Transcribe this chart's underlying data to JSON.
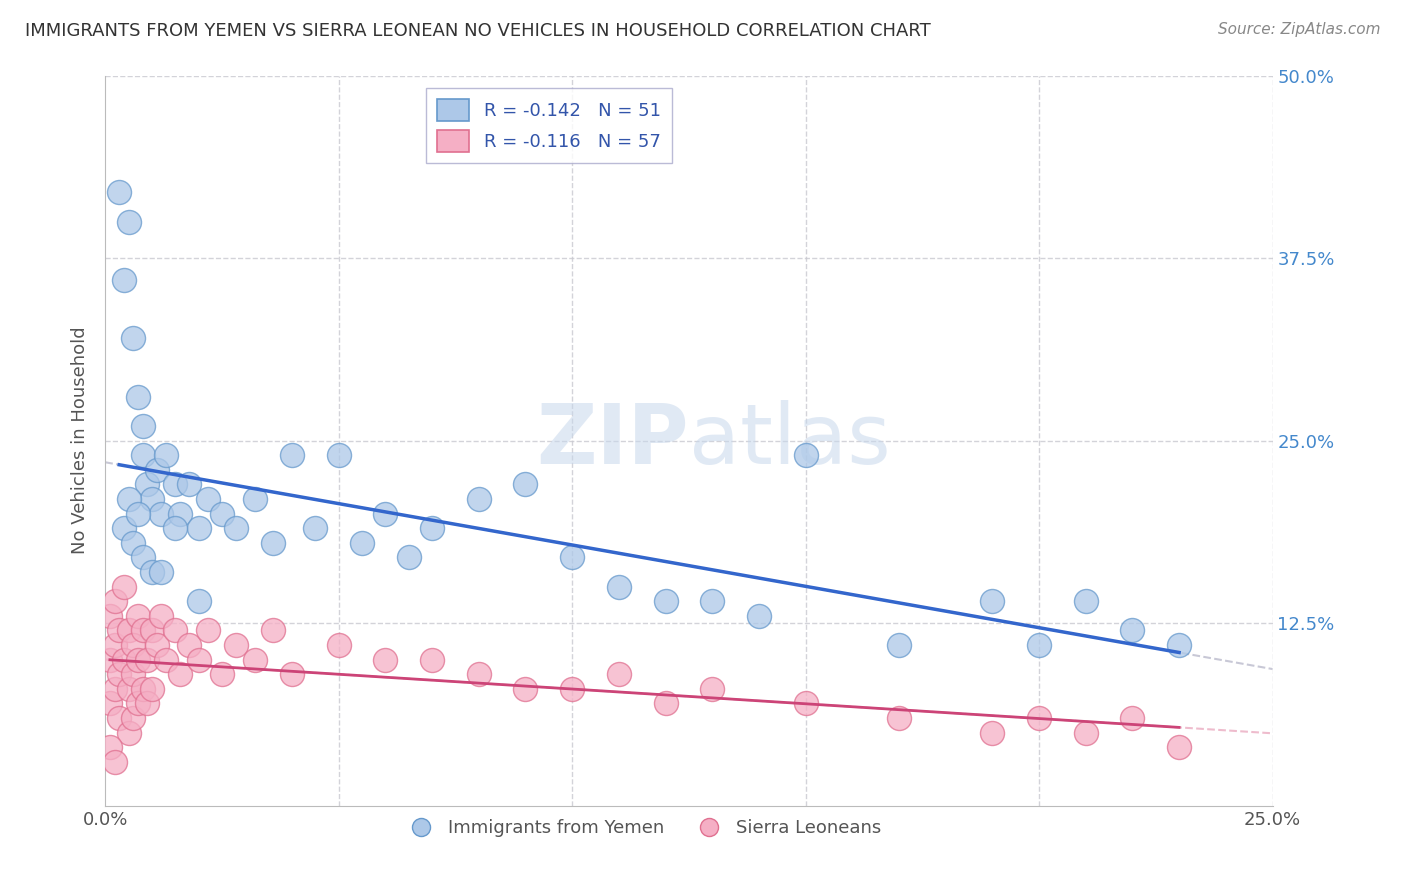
{
  "title": "IMMIGRANTS FROM YEMEN VS SIERRA LEONEAN NO VEHICLES IN HOUSEHOLD CORRELATION CHART",
  "source": "Source: ZipAtlas.com",
  "ylabel": "No Vehicles in Household",
  "xlim": [
    0.0,
    0.25
  ],
  "ylim": [
    0.0,
    0.5
  ],
  "legend1_label": "R = -0.142   N = 51",
  "legend2_label": "R = -0.116   N = 57",
  "series1_name": "Immigrants from Yemen",
  "series2_name": "Sierra Leoneans",
  "series1_color": "#adc8e8",
  "series2_color": "#f5afc5",
  "series1_edge": "#6699cc",
  "series2_edge": "#e07090",
  "trendline1_color": "#3366cc",
  "trendline2_color": "#cc4477",
  "watermark_zip": "ZIP",
  "watermark_atlas": "atlas",
  "background_color": "#ffffff",
  "grid_color": "#c8c8d0",
  "title_color": "#333333",
  "source_color": "#888888",
  "ytick_color": "#4488cc",
  "series1_x": [
    0.003,
    0.004,
    0.005,
    0.006,
    0.007,
    0.008,
    0.008,
    0.009,
    0.01,
    0.011,
    0.012,
    0.013,
    0.015,
    0.016,
    0.018,
    0.02,
    0.022,
    0.025,
    0.028,
    0.032,
    0.036,
    0.04,
    0.045,
    0.05,
    0.055,
    0.06,
    0.065,
    0.07,
    0.08,
    0.09,
    0.1,
    0.11,
    0.12,
    0.13,
    0.14,
    0.15,
    0.17,
    0.19,
    0.2,
    0.21,
    0.22,
    0.23,
    0.004,
    0.005,
    0.006,
    0.007,
    0.008,
    0.01,
    0.012,
    0.015,
    0.02
  ],
  "series1_y": [
    0.42,
    0.36,
    0.4,
    0.32,
    0.28,
    0.26,
    0.24,
    0.22,
    0.21,
    0.23,
    0.2,
    0.24,
    0.22,
    0.2,
    0.22,
    0.19,
    0.21,
    0.2,
    0.19,
    0.21,
    0.18,
    0.24,
    0.19,
    0.24,
    0.18,
    0.2,
    0.17,
    0.19,
    0.21,
    0.22,
    0.17,
    0.15,
    0.14,
    0.14,
    0.13,
    0.24,
    0.11,
    0.14,
    0.11,
    0.14,
    0.12,
    0.11,
    0.19,
    0.21,
    0.18,
    0.2,
    0.17,
    0.16,
    0.16,
    0.19,
    0.14
  ],
  "series2_x": [
    0.001,
    0.001,
    0.001,
    0.002,
    0.002,
    0.002,
    0.003,
    0.003,
    0.003,
    0.004,
    0.004,
    0.005,
    0.005,
    0.005,
    0.006,
    0.006,
    0.006,
    0.007,
    0.007,
    0.007,
    0.008,
    0.008,
    0.009,
    0.009,
    0.01,
    0.01,
    0.011,
    0.012,
    0.013,
    0.015,
    0.016,
    0.018,
    0.02,
    0.022,
    0.025,
    0.028,
    0.032,
    0.036,
    0.04,
    0.05,
    0.06,
    0.07,
    0.08,
    0.09,
    0.1,
    0.11,
    0.12,
    0.13,
    0.15,
    0.17,
    0.19,
    0.2,
    0.21,
    0.22,
    0.23,
    0.001,
    0.002
  ],
  "series2_y": [
    0.13,
    0.1,
    0.07,
    0.14,
    0.11,
    0.08,
    0.12,
    0.09,
    0.06,
    0.15,
    0.1,
    0.12,
    0.08,
    0.05,
    0.11,
    0.09,
    0.06,
    0.13,
    0.1,
    0.07,
    0.12,
    0.08,
    0.1,
    0.07,
    0.12,
    0.08,
    0.11,
    0.13,
    0.1,
    0.12,
    0.09,
    0.11,
    0.1,
    0.12,
    0.09,
    0.11,
    0.1,
    0.12,
    0.09,
    0.11,
    0.1,
    0.1,
    0.09,
    0.08,
    0.08,
    0.09,
    0.07,
    0.08,
    0.07,
    0.06,
    0.05,
    0.06,
    0.05,
    0.06,
    0.04,
    0.04,
    0.03
  ]
}
